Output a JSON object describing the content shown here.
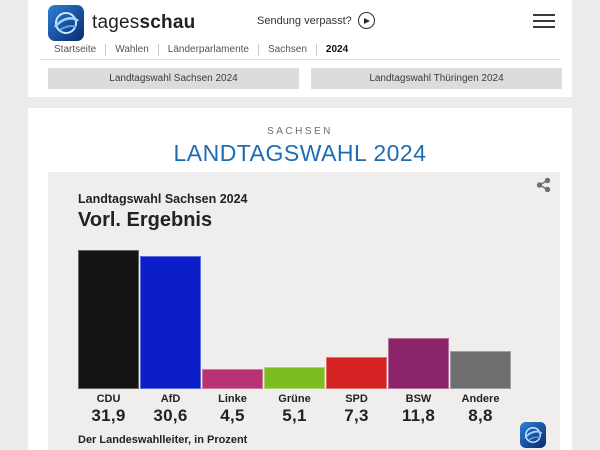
{
  "header": {
    "brand": {
      "name_light": "tages",
      "name_bold": "schau"
    },
    "sendung_verpasst_label": "Sendung verpasst?",
    "icons": [
      "play-icon",
      "hamburger-menu-icon",
      "tagesschau-globe-icon"
    ],
    "breadcrumb": {
      "items": [
        "Startseite",
        "Wahlen",
        "Länderparlamente",
        "Sachsen",
        "2024"
      ],
      "current": "2024"
    },
    "section_buttons": {
      "sachsen": "Landtagswahl Sachsen 2024",
      "thueringen": "Landtagswahl Thüringen 2024"
    }
  },
  "page": {
    "kicker": "SACHSEN",
    "title": "LANDTAGSWAHL 2024"
  },
  "chart_data": {
    "type": "bar",
    "title": "Landtagswahl Sachsen 2024",
    "subtitle": "Vorl. Ergebnis",
    "categories": [
      "CDU",
      "AfD",
      "Linke",
      "Grüne",
      "SPD",
      "BSW",
      "Andere"
    ],
    "values": [
      31.9,
      30.6,
      4.5,
      5.1,
      7.3,
      11.8,
      8.8
    ],
    "values_display": [
      "31,9",
      "30,6",
      "4,5",
      "5,1",
      "7,3",
      "11,8",
      "8,8"
    ],
    "colors": [
      "#141413",
      "#0c1ec8",
      "#b93273",
      "#7cbe22",
      "#d42222",
      "#8b2468",
      "#6e6e70"
    ],
    "unit": "Prozent",
    "source": "Der Landeswahlleiter, in Prozent",
    "xlabel": "",
    "ylabel": "",
    "ylim": [
      0,
      32
    ],
    "grid": false,
    "legend": false
  },
  "colors": {
    "accent_blue": "#1d6cb4",
    "panel_bg": "#efeeec",
    "button_bg": "#dcdcdc",
    "page_bg": "#ececec"
  }
}
